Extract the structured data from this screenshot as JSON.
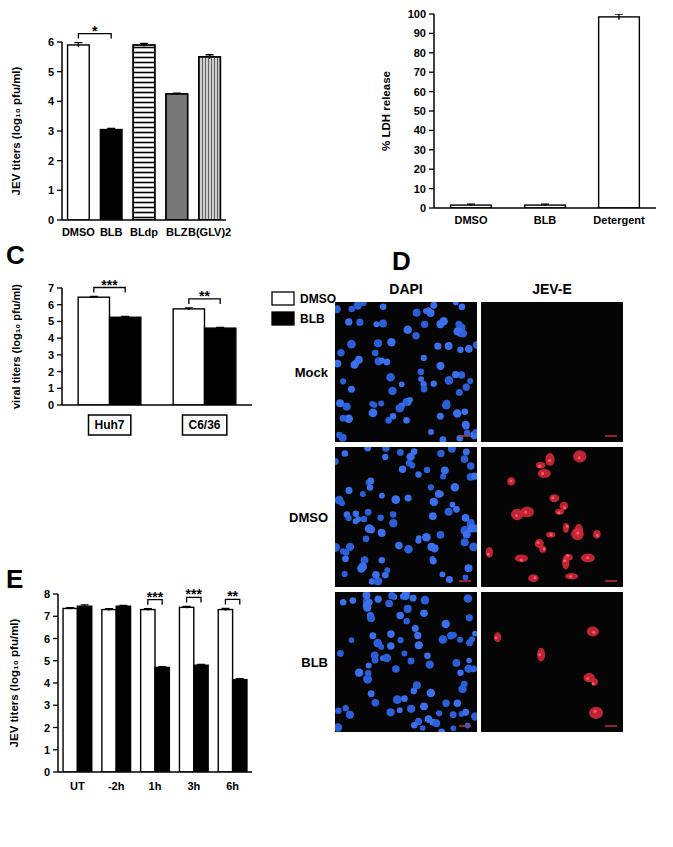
{
  "chart_data": [
    {
      "type": "bar",
      "y_label": "JEV titers (log₁₀ pfu/ml)",
      "categories": [
        "DMSO",
        "BLB",
        "BLdp",
        "BLZ",
        "B(GLV)2"
      ],
      "values": [
        5.9,
        3.05,
        5.9,
        4.25,
        5.5
      ],
      "errors": [
        0.08,
        0.04,
        0.05,
        0.03,
        0.07
      ],
      "colors": [
        "#ffffff",
        "#000000",
        "#ffffff",
        "#9a9a9a",
        "#cfcfcf"
      ],
      "ylim": [
        0,
        6
      ],
      "yticks": [
        0,
        1,
        2,
        3,
        4,
        5,
        6
      ],
      "grid": false,
      "annotations": [
        {
          "categories": [
            0,
            1
          ],
          "text": "*"
        }
      ]
    },
    {
      "type": "bar",
      "y_label": "% LDH release",
      "categories": [
        "DMSO",
        "BLB",
        "Detergent"
      ],
      "values": [
        1.5,
        1.5,
        98.5
      ],
      "errors": [
        0.5,
        0.5,
        1.5
      ],
      "color": "#ffffff",
      "ylim": [
        0,
        100
      ],
      "yticks": [
        0,
        10,
        20,
        30,
        40,
        50,
        60,
        70,
        80,
        90,
        100
      ],
      "grid": false
    },
    {
      "type": "bar",
      "panel": "C",
      "y_label": "viral titers (log₁₀ pfu/ml)",
      "categories": [
        "Huh7",
        "C6/36"
      ],
      "series": [
        {
          "name": "DMSO",
          "color": "#ffffff",
          "values": [
            6.45,
            5.75
          ],
          "errors": [
            0.04,
            0.06
          ]
        },
        {
          "name": "BLB",
          "color": "#000000",
          "values": [
            5.25,
            4.6
          ],
          "errors": [
            0.05,
            0.04
          ]
        }
      ],
      "ylim": [
        0,
        7
      ],
      "yticks": [
        0,
        1,
        2,
        3,
        4,
        5,
        6,
        7
      ],
      "grid": false,
      "legend": "right",
      "annotations": [
        {
          "category": 0,
          "text": "***"
        },
        {
          "category": 1,
          "text": "**"
        }
      ]
    },
    {
      "type": "bar",
      "panel": "E",
      "y_label": "JEV titers (log₁₀ pfu/ml)",
      "categories": [
        "UT",
        "-2h",
        "1h",
        "3h",
        "6h"
      ],
      "series": [
        {
          "color": "#ffffff",
          "values": [
            7.35,
            7.3,
            7.3,
            7.4,
            7.3
          ],
          "errors": [
            0.04,
            0.04,
            0.04,
            0.04,
            0.05
          ]
        },
        {
          "color": "#000000",
          "values": [
            7.45,
            7.45,
            4.7,
            4.8,
            4.15
          ],
          "errors": [
            0.06,
            0.04,
            0.04,
            0.04,
            0.05
          ]
        }
      ],
      "ylim": [
        0,
        8
      ],
      "yticks": [
        0,
        1,
        2,
        3,
        4,
        5,
        6,
        7,
        8
      ],
      "grid": false,
      "annotations": [
        {
          "category": 2,
          "text": "***"
        },
        {
          "category": 3,
          "text": "***"
        },
        {
          "category": 4,
          "text": "**"
        }
      ]
    }
  ],
  "micrograph": {
    "panel": "D",
    "columns": [
      "DAPI",
      "JEV-E"
    ],
    "rows": [
      "Mock",
      "DMSO",
      "BLB"
    ]
  }
}
